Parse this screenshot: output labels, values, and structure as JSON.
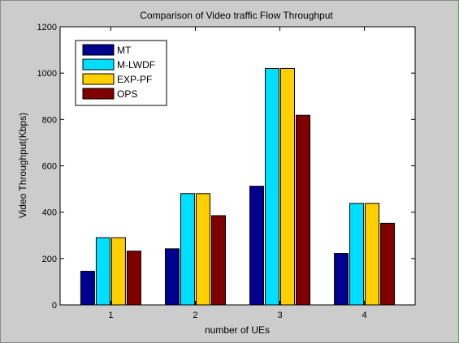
{
  "chart_data": {
    "type": "bar",
    "title": "Comparison of Video traffic Flow Throughput",
    "xlabel": "number of UEs",
    "ylabel": "Video Throughput(Kbps)",
    "categories": [
      "1",
      "2",
      "3",
      "4"
    ],
    "ylim": [
      0,
      1200
    ],
    "yticks": [
      "0",
      "200",
      "400",
      "600",
      "800",
      "1000",
      "1200"
    ],
    "legend_position": "top-left",
    "grid": false,
    "series": [
      {
        "name": "MT",
        "color": "#00008f",
        "values": [
          145,
          242,
          512,
          222
        ]
      },
      {
        "name": "M-LWDF",
        "color": "#00dfff",
        "values": [
          290,
          480,
          1020,
          438
        ]
      },
      {
        "name": "EXP-PF",
        "color": "#ffcf00",
        "values": [
          290,
          480,
          1020,
          438
        ]
      },
      {
        "name": "OPS",
        "color": "#800000",
        "values": [
          232,
          385,
          818,
          352
        ]
      }
    ]
  }
}
